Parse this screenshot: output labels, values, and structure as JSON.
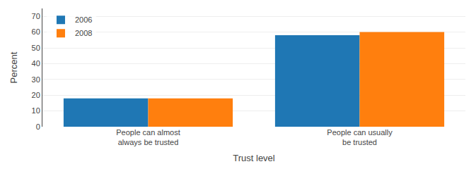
{
  "chart_data": {
    "type": "bar",
    "xlabel": "Trust level",
    "ylabel": "Percent",
    "categories": [
      "People can almost\nalways be trusted",
      "People can usually\nbe trusted"
    ],
    "series": [
      {
        "name": "2006",
        "values": [
          18,
          58
        ]
      },
      {
        "name": "2008",
        "values": [
          18,
          60
        ]
      }
    ],
    "ylim": [
      0,
      75
    ],
    "yticks": [
      0,
      10,
      20,
      30,
      40,
      50,
      60,
      70
    ],
    "grid": true,
    "legend": "upper left"
  }
}
